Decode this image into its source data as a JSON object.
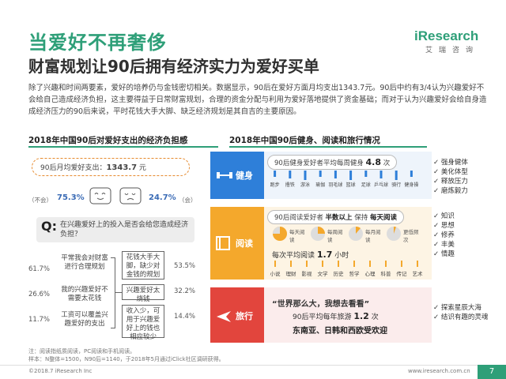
{
  "header": {
    "title": "当爱好不再奢侈",
    "subtitle": "财富规划让90后拥有经济实力为爱好买单",
    "logo_name": "iResearch",
    "logo_sub": "艾瑞咨询"
  },
  "intro": "除了兴趣和时间两要素，爱好的培养仍与金钱密切相关。数据显示，90后在爱好方面月均支出1343.7元。90后中约有3/4认为兴趣爱好不会给自己造成经济负担，这主要得益于日常财富规划，合理的资金分配与利用为爱好落地提供了资金基础；而对于认为兴趣爱好会给自身造成经济压力的90后来说，平时花钱大手大脚、缺乏经济规划是其自吉的主要原因。",
  "left": {
    "title": "2018年中国90后对爱好支出的经济负担感",
    "spend_label": "90后月均爱好支出：",
    "spend_value": "1343.7",
    "spend_unit": "元",
    "no_label": "（不会）",
    "no_pct": "75.3%",
    "yes_pct": "24.7%",
    "yes_label": "（会）",
    "question": "在兴趣爱好上的投入是否会给您造成经济负担？",
    "q_mark": "Q:",
    "left_rows": [
      {
        "pct": "61.7%",
        "text": "平常我会对财富进行合理规划"
      },
      {
        "pct": "26.6%",
        "text": "我的兴趣爱好不需要太花钱"
      },
      {
        "pct": "11.7%",
        "text": "工资可以覆盖兴趣爱好的支出"
      }
    ],
    "right_rows": [
      {
        "pct": "53.5%",
        "text": "花钱大手大脚，缺少对金钱的规划"
      },
      {
        "pct": "32.2%",
        "text": "兴趣爱好太烧钱"
      },
      {
        "pct": "14.4%",
        "text": "收入少，可用于兴趣爱好上的钱也相应较少"
      }
    ]
  },
  "right": {
    "title": "2018年中国90后健身、阅读和旅行情况",
    "fitness": {
      "label": "健身",
      "pill": "90后健身爱好者平均每周健身",
      "value": "4.8",
      "unit": "次",
      "bars": [
        "跑步",
        "撸铁",
        "游泳",
        "瑜伽",
        "羽毛球",
        "篮球",
        "足球",
        "乒乓球",
        "骑行",
        "健身操"
      ],
      "bullets": [
        "强身健体",
        "美化体型",
        "释放压力",
        "磨炼毅力"
      ]
    },
    "reading": {
      "label": "阅读",
      "pill": "90后阅读爱好者",
      "highlight1": "半数以上",
      "middle": "保持",
      "highlight2": "每天阅读",
      "pie_labels": [
        "每天阅读",
        "每周阅读",
        "每月阅读",
        "更低频次"
      ],
      "avg_label": "每次平均阅读",
      "avg_value": "1.7",
      "avg_unit": "小时",
      "genres": [
        "小说",
        "理财",
        "影视",
        "文学",
        "历史",
        "哲学",
        "心理",
        "科普",
        "传记",
        "艺术"
      ],
      "bullets": [
        "知识",
        "思想",
        "修养",
        "丰美",
        "情趣"
      ]
    },
    "travel": {
      "label": "旅行",
      "quote": "“世界那么大，我想去看看”",
      "avg_label": "90后平均每年旅游",
      "avg_value": "1.2",
      "avg_unit": "次",
      "places": "东南亚、日韩和西欧受欢迎",
      "bullets": [
        "探索星辰大海",
        "结识有趣的灵魂"
      ]
    }
  },
  "footer": {
    "note1": "注：阅读指纸质阅读，PC阅读和手机阅读。",
    "note2": "样本：N整体=1500，N90后=1140，于2018年5月通过iClick社区调研获得。",
    "copyright": "©2018.7 iResearch Inc",
    "site": "www.iresearch.com.cn",
    "page": "7"
  },
  "colors": {
    "green": "#2e9f78",
    "fitness": "#2e7fd9",
    "reading": "#f4a82c",
    "travel": "#e2453d",
    "orange_dash": "#e68a2e"
  }
}
